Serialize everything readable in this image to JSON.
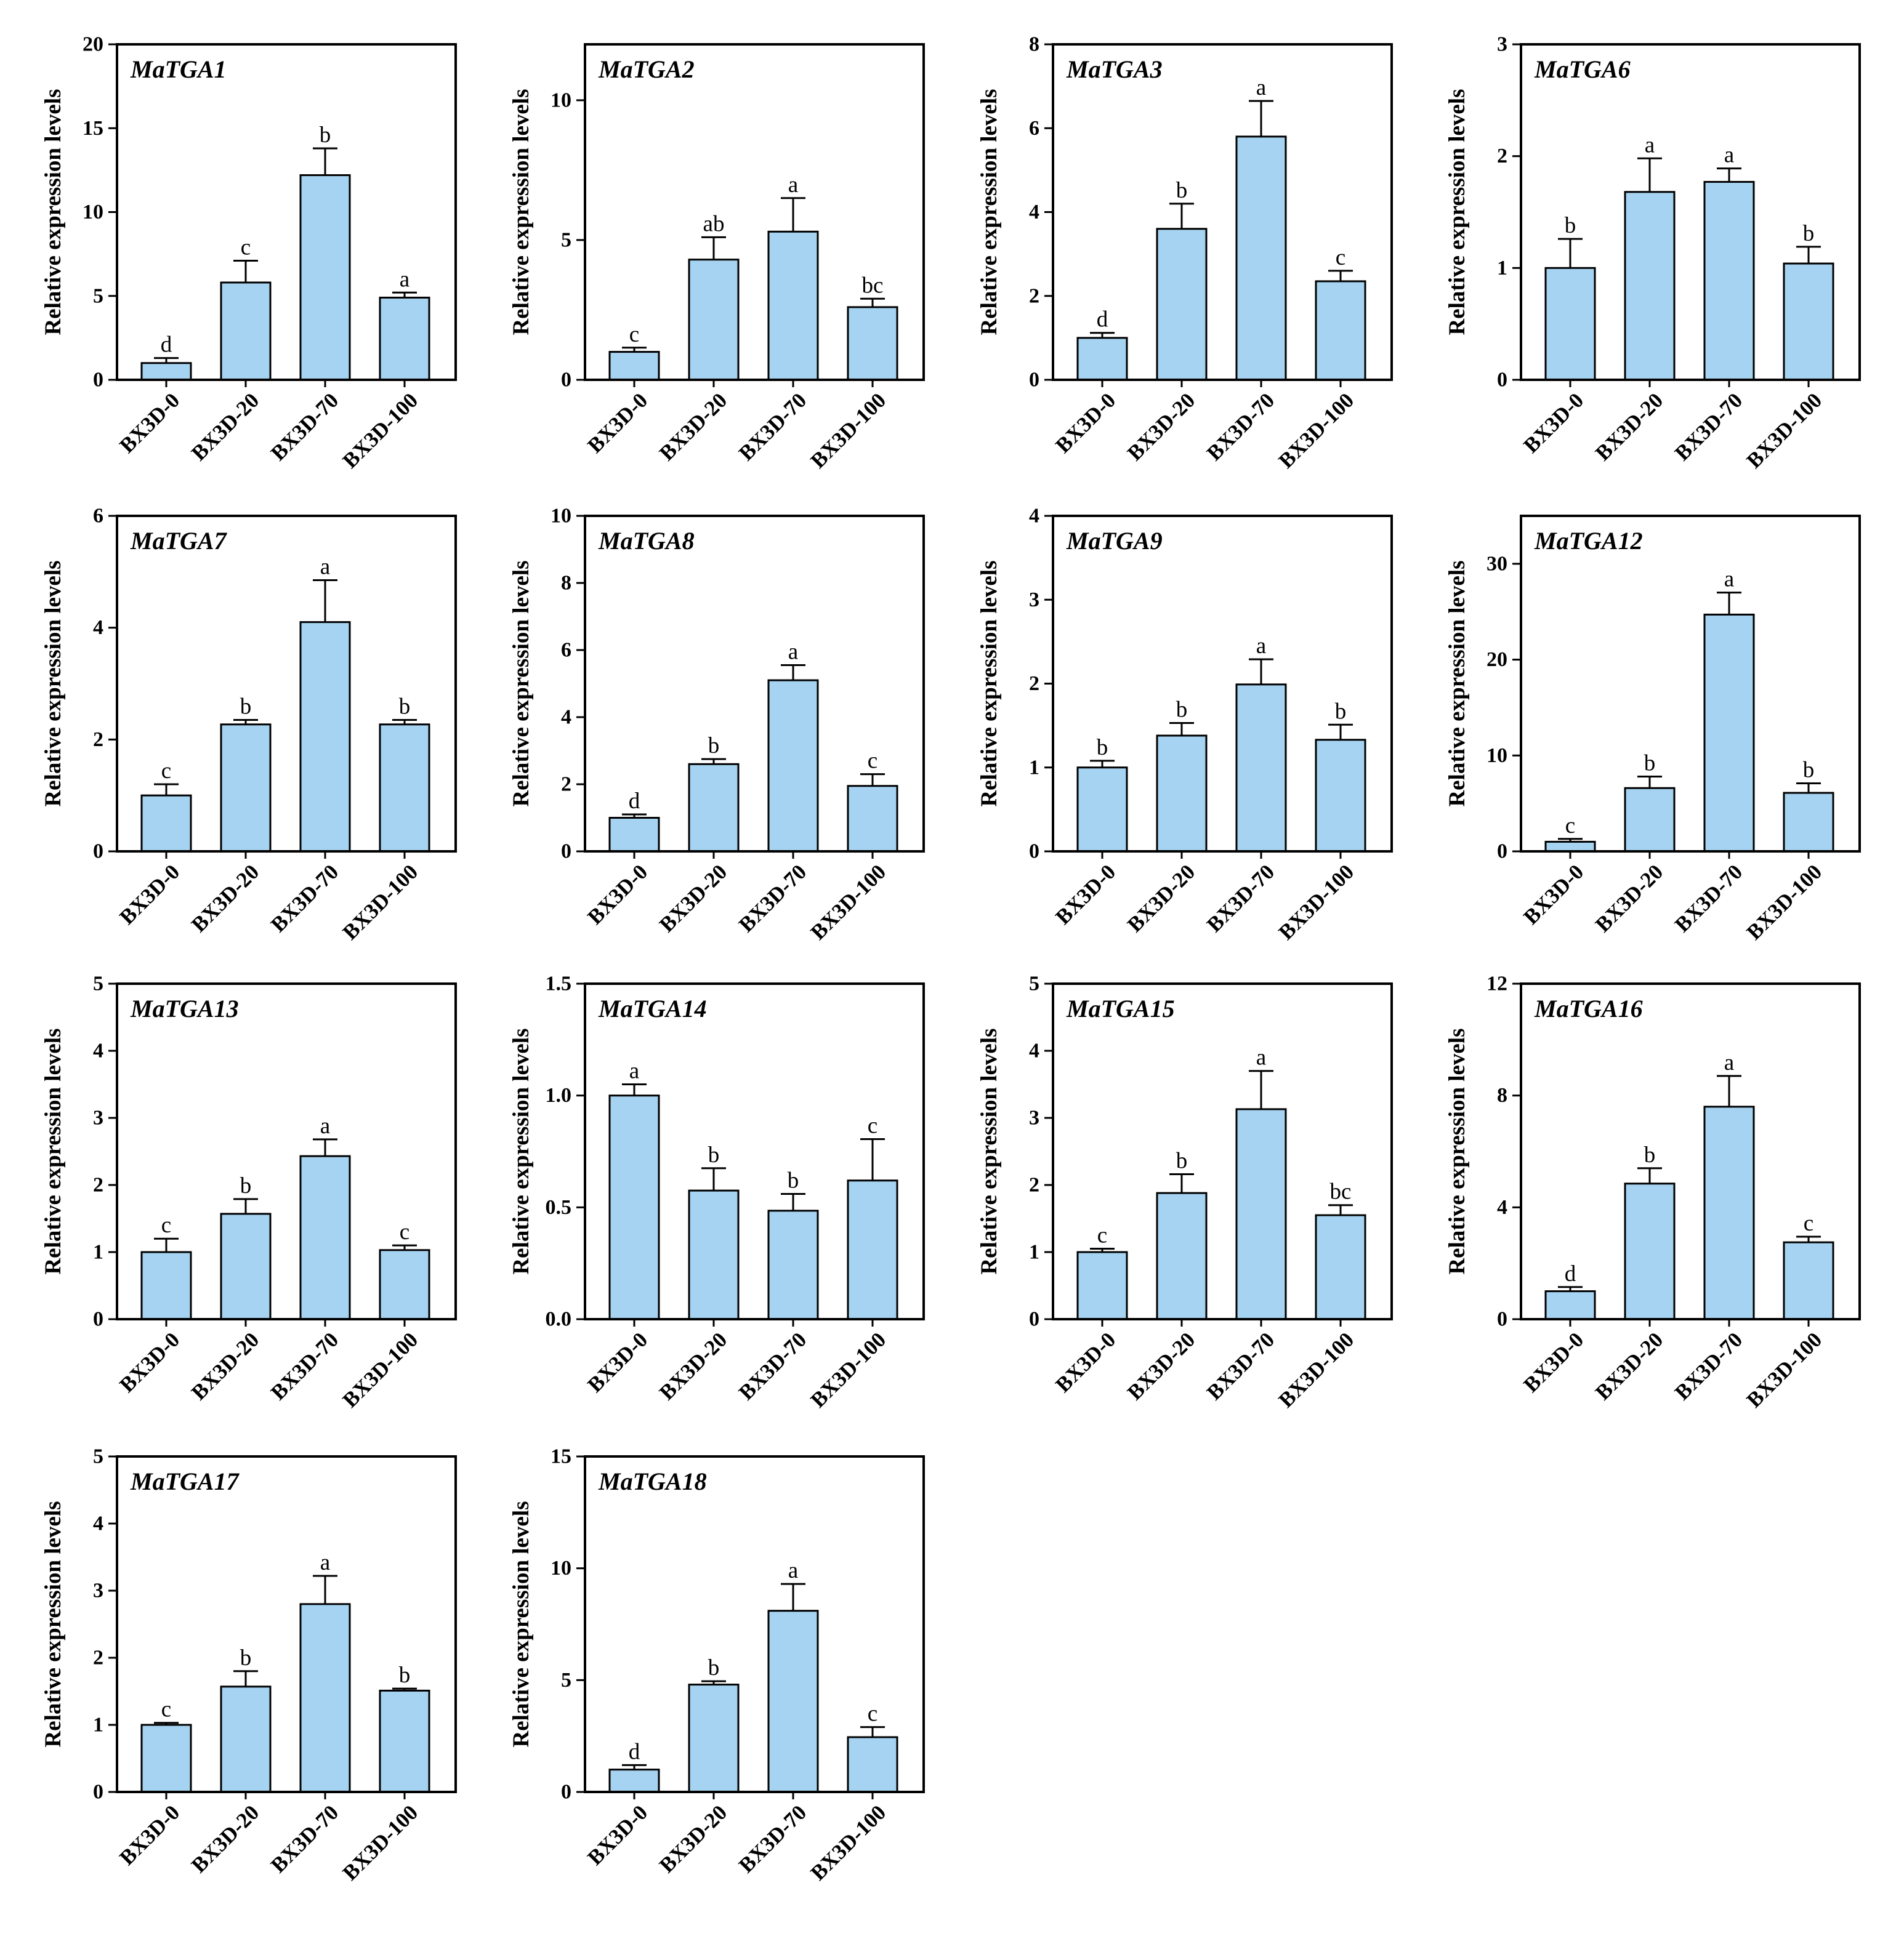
{
  "colors": {
    "bar_fill": "#a6d3f1",
    "bar_stroke": "#000000",
    "axis": "#000000",
    "background": "#ffffff"
  },
  "chart_data": [
    {
      "type": "bar",
      "title": "MaTGA1",
      "ylabel": "Relative expression levels",
      "categories": [
        "BX3D-0",
        "BX3D-20",
        "BX3D-70",
        "BX3D-100"
      ],
      "values": [
        1.0,
        5.8,
        12.2,
        4.9
      ],
      "errors": [
        0.3,
        1.3,
        1.6,
        0.3
      ],
      "letters": [
        "d",
        "c",
        "b",
        "a"
      ],
      "ylim": [
        0,
        20
      ],
      "yticks": [
        0,
        5,
        10,
        15,
        20
      ],
      "ytick_labels": [
        "0",
        "5",
        "10",
        "15",
        "20"
      ]
    },
    {
      "type": "bar",
      "title": "MaTGA2",
      "ylabel": "Relative expression levels",
      "categories": [
        "BX3D-0",
        "BX3D-20",
        "BX3D-70",
        "BX3D-100"
      ],
      "values": [
        1.0,
        4.3,
        5.3,
        2.6
      ],
      "errors": [
        0.15,
        0.8,
        1.2,
        0.3
      ],
      "letters": [
        "c",
        "ab",
        "a",
        "bc"
      ],
      "ylim": [
        0,
        12
      ],
      "yticks": [
        0,
        5,
        10
      ],
      "ytick_labels": [
        "0",
        "5",
        "10"
      ]
    },
    {
      "type": "bar",
      "title": "MaTGA3",
      "ylabel": "Relative expression levels",
      "categories": [
        "BX3D-0",
        "BX3D-20",
        "BX3D-70",
        "BX3D-100"
      ],
      "values": [
        1.0,
        3.6,
        5.8,
        2.35
      ],
      "errors": [
        0.12,
        0.6,
        0.85,
        0.25
      ],
      "letters": [
        "d",
        "b",
        "a",
        "c"
      ],
      "ylim": [
        0,
        8
      ],
      "yticks": [
        0,
        2,
        4,
        6,
        8
      ],
      "ytick_labels": [
        "0",
        "2",
        "4",
        "6",
        "8"
      ]
    },
    {
      "type": "bar",
      "title": "MaTGA6",
      "ylabel": "Relative expression levels",
      "categories": [
        "BX3D-0",
        "BX3D-20",
        "BX3D-70",
        "BX3D-100"
      ],
      "values": [
        1.0,
        1.68,
        1.77,
        1.04
      ],
      "errors": [
        0.26,
        0.3,
        0.12,
        0.15
      ],
      "letters": [
        "b",
        "a",
        "a",
        "b"
      ],
      "ylim": [
        0,
        3
      ],
      "yticks": [
        0,
        1,
        2,
        3
      ],
      "ytick_labels": [
        "0",
        "1",
        "2",
        "3"
      ]
    },
    {
      "type": "bar",
      "title": "MaTGA7",
      "ylabel": "Relative expression levels",
      "categories": [
        "BX3D-0",
        "BX3D-20",
        "BX3D-70",
        "BX3D-100"
      ],
      "values": [
        1.0,
        2.27,
        4.1,
        2.27
      ],
      "errors": [
        0.2,
        0.08,
        0.75,
        0.08
      ],
      "letters": [
        "c",
        "b",
        "a",
        "b"
      ],
      "ylim": [
        0,
        6
      ],
      "yticks": [
        0,
        2,
        4,
        6
      ],
      "ytick_labels": [
        "0",
        "2",
        "4",
        "6"
      ]
    },
    {
      "type": "bar",
      "title": "MaTGA8",
      "ylabel": "Relative expression levels",
      "categories": [
        "BX3D-0",
        "BX3D-20",
        "BX3D-70",
        "BX3D-100"
      ],
      "values": [
        1.0,
        2.6,
        5.1,
        1.95
      ],
      "errors": [
        0.1,
        0.15,
        0.45,
        0.35
      ],
      "letters": [
        "d",
        "b",
        "a",
        "c"
      ],
      "ylim": [
        0,
        10
      ],
      "yticks": [
        0,
        2,
        4,
        6,
        8,
        10
      ],
      "ytick_labels": [
        "0",
        "2",
        "4",
        "6",
        "8",
        "10"
      ]
    },
    {
      "type": "bar",
      "title": "MaTGA9",
      "ylabel": "Relative expression levels",
      "categories": [
        "BX3D-0",
        "BX3D-20",
        "BX3D-70",
        "BX3D-100"
      ],
      "values": [
        1.0,
        1.38,
        1.99,
        1.33
      ],
      "errors": [
        0.08,
        0.15,
        0.3,
        0.18
      ],
      "letters": [
        "b",
        "b",
        "a",
        "b"
      ],
      "ylim": [
        0,
        4
      ],
      "yticks": [
        0,
        1,
        2,
        3,
        4
      ],
      "ytick_labels": [
        "0",
        "1",
        "2",
        "3",
        "4"
      ]
    },
    {
      "type": "bar",
      "title": "MaTGA12",
      "ylabel": "Relative expression levels",
      "categories": [
        "BX3D-0",
        "BX3D-20",
        "BX3D-70",
        "BX3D-100"
      ],
      "values": [
        1.0,
        6.6,
        24.7,
        6.1
      ],
      "errors": [
        0.3,
        1.2,
        2.3,
        1.0
      ],
      "letters": [
        "c",
        "b",
        "a",
        "b"
      ],
      "ylim": [
        0,
        35
      ],
      "yticks": [
        0,
        10,
        20,
        30
      ],
      "ytick_labels": [
        "0",
        "10",
        "20",
        "30"
      ]
    },
    {
      "type": "bar",
      "title": "MaTGA13",
      "ylabel": "Relative expression levels",
      "categories": [
        "BX3D-0",
        "BX3D-20",
        "BX3D-70",
        "BX3D-100"
      ],
      "values": [
        1.0,
        1.57,
        2.43,
        1.03
      ],
      "errors": [
        0.2,
        0.22,
        0.25,
        0.07
      ],
      "letters": [
        "c",
        "b",
        "a",
        "c"
      ],
      "ylim": [
        0,
        5
      ],
      "yticks": [
        0,
        1,
        2,
        3,
        4,
        5
      ],
      "ytick_labels": [
        "0",
        "1",
        "2",
        "3",
        "4",
        "5"
      ]
    },
    {
      "type": "bar",
      "title": "MaTGA14",
      "ylabel": "Relative expression levels",
      "categories": [
        "BX3D-0",
        "BX3D-20",
        "BX3D-70",
        "BX3D-100"
      ],
      "values": [
        1.0,
        0.575,
        0.485,
        0.62
      ],
      "errors": [
        0.05,
        0.1,
        0.075,
        0.185
      ],
      "letters": [
        "a",
        "b",
        "b",
        "c"
      ],
      "ylim": [
        0,
        1.5
      ],
      "yticks": [
        0,
        0.5,
        1.0,
        1.5
      ],
      "ytick_labels": [
        "0.0",
        "0.5",
        "1.0",
        "1.5"
      ]
    },
    {
      "type": "bar",
      "title": "MaTGA15",
      "ylabel": "Relative expression levels",
      "categories": [
        "BX3D-0",
        "BX3D-20",
        "BX3D-70",
        "BX3D-100"
      ],
      "values": [
        1.0,
        1.88,
        3.13,
        1.55
      ],
      "errors": [
        0.05,
        0.28,
        0.57,
        0.15
      ],
      "letters": [
        "c",
        "b",
        "a",
        "bc"
      ],
      "ylim": [
        0,
        5
      ],
      "yticks": [
        0,
        1,
        2,
        3,
        4,
        5
      ],
      "ytick_labels": [
        "0",
        "1",
        "2",
        "3",
        "4",
        "5"
      ]
    },
    {
      "type": "bar",
      "title": "MaTGA16",
      "ylabel": "Relative expression levels",
      "categories": [
        "BX3D-0",
        "BX3D-20",
        "BX3D-70",
        "BX3D-100"
      ],
      "values": [
        1.0,
        4.85,
        7.6,
        2.75
      ],
      "errors": [
        0.15,
        0.55,
        1.1,
        0.2
      ],
      "letters": [
        "d",
        "b",
        "a",
        "c"
      ],
      "ylim": [
        0,
        12
      ],
      "yticks": [
        0,
        4,
        8,
        12
      ],
      "ytick_labels": [
        "0",
        "4",
        "8",
        "12"
      ]
    },
    {
      "type": "bar",
      "title": "MaTGA17",
      "ylabel": "Relative expression levels",
      "categories": [
        "BX3D-0",
        "BX3D-20",
        "BX3D-70",
        "BX3D-100"
      ],
      "values": [
        1.0,
        1.57,
        2.8,
        1.51
      ],
      "errors": [
        0.03,
        0.23,
        0.42,
        0.03
      ],
      "letters": [
        "c",
        "b",
        "a",
        "b"
      ],
      "ylim": [
        0,
        5
      ],
      "yticks": [
        0,
        1,
        2,
        3,
        4,
        5
      ],
      "ytick_labels": [
        "0",
        "1",
        "2",
        "3",
        "4",
        "5"
      ]
    },
    {
      "type": "bar",
      "title": "MaTGA18",
      "ylabel": "Relative expression levels",
      "categories": [
        "BX3D-0",
        "BX3D-20",
        "BX3D-70",
        "BX3D-100"
      ],
      "values": [
        1.0,
        4.8,
        8.1,
        2.45
      ],
      "errors": [
        0.2,
        0.15,
        1.2,
        0.45
      ],
      "letters": [
        "d",
        "b",
        "a",
        "c"
      ],
      "ylim": [
        0,
        15
      ],
      "yticks": [
        0,
        5,
        10,
        15
      ],
      "ytick_labels": [
        "0",
        "5",
        "10",
        "15"
      ]
    }
  ]
}
